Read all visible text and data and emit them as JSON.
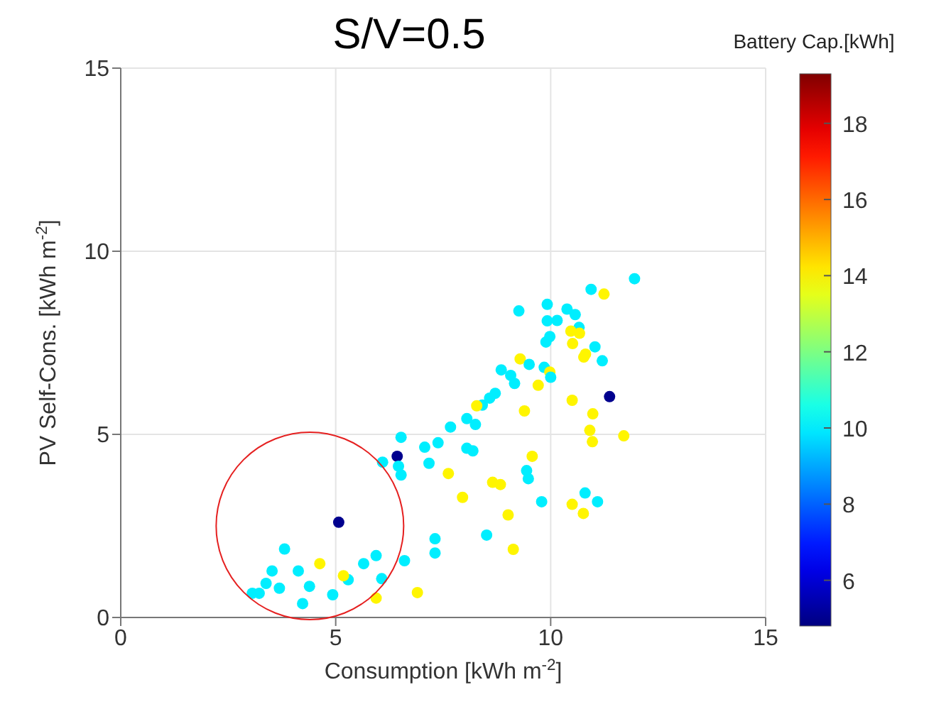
{
  "chart_data": {
    "type": "scatter",
    "title": "S/V=0.5",
    "xlabel": "Consumption [kWh m$^{-2}$]",
    "ylabel": "PV Self-Cons. [kWh m$^{-2}$]",
    "clabel": "Battery Cap.[kWh]",
    "xlim": [
      0,
      15
    ],
    "ylim": [
      0,
      15
    ],
    "xticks": [
      0,
      5,
      10,
      15
    ],
    "yticks": [
      0,
      5,
      10,
      15
    ],
    "clim": [
      4.8,
      19.3
    ],
    "cticks": [
      6,
      8,
      10,
      12,
      14,
      16,
      18
    ],
    "grid": true,
    "marker": "circle",
    "x": [
      5.07,
      6.43,
      6.52,
      6.09,
      6.46,
      6.52,
      7.07,
      7.38,
      7.17,
      7.67,
      8.05,
      8.05,
      7.62,
      7.95,
      7.31,
      7.31,
      6.6,
      6.9,
      5.94,
      6.07,
      5.94,
      5.65,
      5.29,
      5.18,
      4.93,
      4.63,
      4.39,
      4.23,
      4.13,
      3.81,
      3.52,
      3.69,
      3.38,
      3.22,
      3.06,
      11.95,
      10.94,
      11.24,
      9.26,
      9.92,
      9.92,
      10.15,
      10.38,
      10.57,
      10.66,
      10.47,
      10.67,
      10.51,
      9.98,
      9.89,
      11.03,
      10.81,
      10.77,
      11.2,
      9.29,
      9.5,
      9.85,
      9.98,
      10.0,
      8.85,
      9.07,
      9.16,
      9.71,
      8.71,
      8.58,
      8.41,
      8.28,
      9.39,
      10.5,
      11.37,
      10.98,
      10.91,
      10.97,
      11.7,
      8.25,
      8.19,
      9.57,
      9.44,
      9.48,
      8.65,
      8.83,
      9.79,
      10.8,
      11.09,
      10.5,
      10.76,
      9.01,
      8.51,
      9.13
    ],
    "values": [
      2.6,
      4.4,
      4.92,
      4.24,
      4.13,
      3.89,
      4.65,
      4.77,
      4.21,
      5.2,
      5.43,
      4.62,
      3.93,
      3.28,
      2.15,
      1.76,
      1.55,
      0.68,
      0.53,
      1.06,
      1.69,
      1.47,
      1.03,
      1.14,
      0.62,
      1.47,
      0.85,
      0.38,
      1.27,
      1.87,
      1.27,
      0.8,
      0.93,
      0.66,
      0.66,
      9.25,
      8.96,
      8.83,
      8.37,
      8.55,
      8.1,
      8.11,
      8.42,
      8.27,
      7.92,
      7.82,
      7.76,
      7.48,
      7.67,
      7.52,
      7.39,
      7.19,
      7.11,
      7.01,
      7.06,
      6.91,
      6.83,
      6.7,
      6.56,
      6.76,
      6.61,
      6.39,
      6.34,
      6.12,
      5.99,
      5.8,
      5.78,
      5.64,
      5.93,
      6.03,
      5.56,
      5.11,
      4.8,
      4.96,
      5.27,
      4.55,
      4.4,
      4.01,
      3.79,
      3.69,
      3.63,
      3.16,
      3.4,
      3.16,
      3.09,
      2.84,
      2.8,
      2.25,
      1.86
    ],
    "cvalues": [
      5,
      5,
      10,
      10,
      10,
      10,
      10,
      10,
      10,
      10,
      10,
      10,
      14,
      14,
      10,
      10,
      10,
      14,
      14,
      10,
      10,
      10,
      10,
      14,
      10,
      14,
      10,
      10,
      10,
      10,
      10,
      10,
      10,
      10,
      10,
      10,
      10,
      14,
      10,
      10,
      10,
      10,
      10,
      10,
      10,
      14,
      14,
      14,
      10,
      10,
      10,
      14,
      14,
      10,
      14,
      10,
      10,
      14,
      10,
      10,
      10,
      10,
      14,
      10,
      10,
      10,
      14,
      14,
      14,
      5,
      14,
      14,
      14,
      14,
      10,
      10,
      14,
      10,
      10,
      14,
      14,
      10,
      10,
      10,
      14,
      14,
      14,
      10,
      14
    ]
  }
}
